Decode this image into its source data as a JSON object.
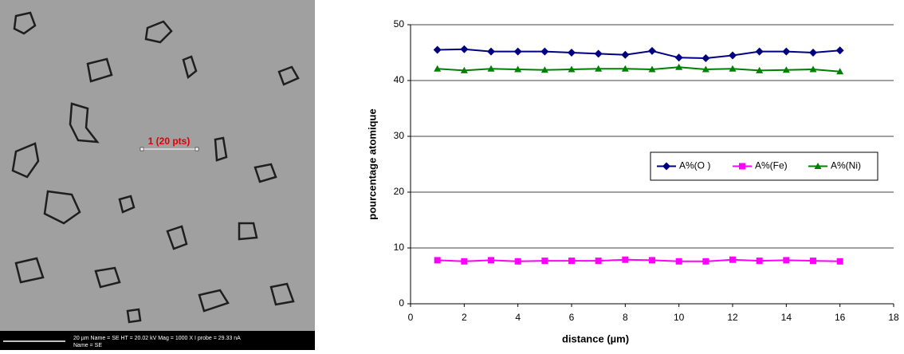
{
  "image": {
    "label": "1 (20 pts)",
    "info_line1": "20 µm   Name = SE   HT = 20.02 kV   Mag = 1000 X   I probe = 29.33 nA",
    "info_line2": "Name = SE"
  },
  "chart_data": {
    "type": "line",
    "xlabel": "distance (µm)",
    "ylabel": "pourcentage atomique",
    "x": [
      1,
      2,
      3,
      4,
      5,
      6,
      7,
      8,
      9,
      10,
      11,
      12,
      13,
      14,
      15,
      16
    ],
    "series": [
      {
        "name": "A%(O )",
        "color": "#000080",
        "marker": "diamond",
        "values": [
          45.5,
          45.6,
          45.2,
          45.2,
          45.2,
          45.0,
          44.8,
          44.6,
          45.3,
          44.1,
          44.0,
          44.5,
          45.2,
          45.2,
          45.0,
          45.4
        ]
      },
      {
        "name": "A%(Fe)",
        "color": "#ff00ff",
        "marker": "square",
        "values": [
          7.8,
          7.6,
          7.8,
          7.6,
          7.7,
          7.7,
          7.7,
          7.9,
          7.8,
          7.6,
          7.6,
          7.9,
          7.7,
          7.8,
          7.7,
          7.6
        ]
      },
      {
        "name": "A%(Ni)",
        "color": "#008000",
        "marker": "triangle",
        "values": [
          42.1,
          41.8,
          42.1,
          42.0,
          41.9,
          42.0,
          42.1,
          42.1,
          42.0,
          42.4,
          42.0,
          42.1,
          41.8,
          41.9,
          42.0,
          41.6
        ]
      }
    ],
    "xlim": [
      0,
      18
    ],
    "xticks": [
      0,
      2,
      4,
      6,
      8,
      10,
      12,
      14,
      16,
      18
    ],
    "ylim": [
      0,
      50
    ],
    "yticks": [
      0,
      10,
      20,
      30,
      40,
      50
    ],
    "grid": true,
    "legend_position": "right"
  }
}
